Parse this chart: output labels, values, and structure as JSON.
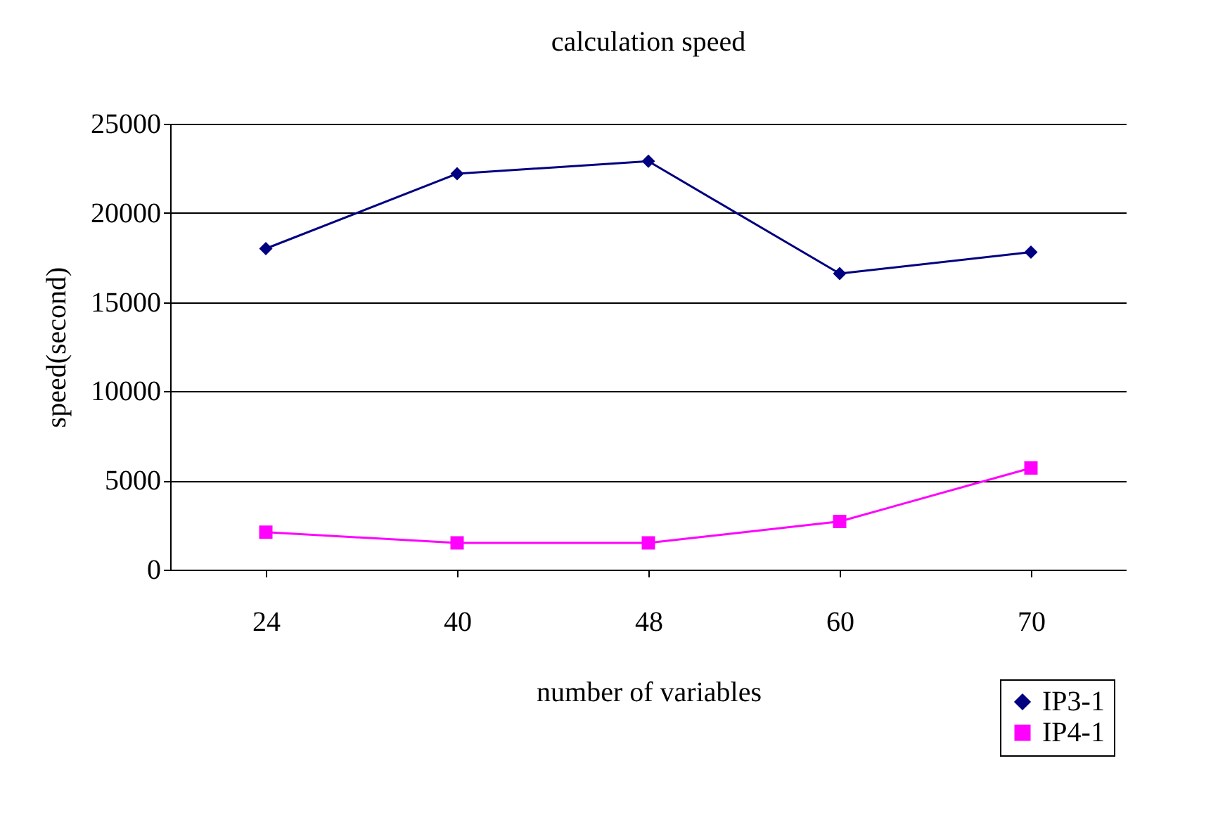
{
  "chart_data": {
    "type": "line",
    "title": "calculation speed",
    "xlabel": "number of variables",
    "ylabel": "speed(second)",
    "categories": [
      "24",
      "40",
      "48",
      "60",
      "70"
    ],
    "series": [
      {
        "name": "IP3-1",
        "color": "#000080",
        "marker": "diamond",
        "values": [
          18000,
          22200,
          22900,
          16600,
          17800
        ]
      },
      {
        "name": "IP4-1",
        "color": "#ff00ff",
        "marker": "square",
        "values": [
          2100,
          1500,
          1500,
          2700,
          5700
        ]
      }
    ],
    "ylim": [
      0,
      25000
    ],
    "yticks": [
      0,
      5000,
      10000,
      15000,
      20000,
      25000
    ],
    "grid": "y",
    "legend": "bottom right"
  }
}
